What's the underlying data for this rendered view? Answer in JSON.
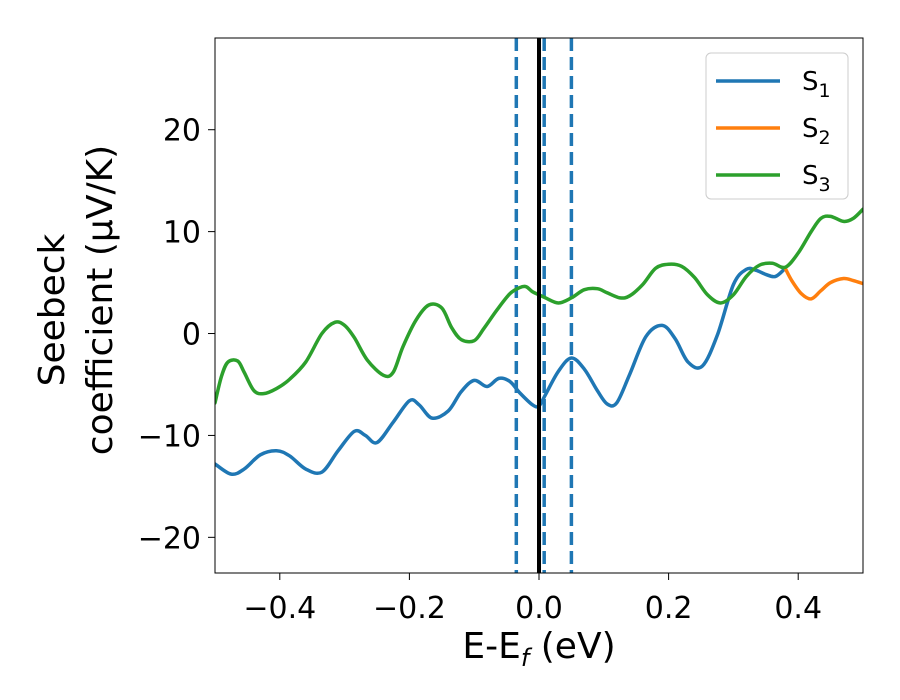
{
  "chart_data": {
    "type": "line",
    "xlabel": "E-E",
    "xlabel_sub": "f",
    "xlabel_unit": " (eV)",
    "ylabel_line1": "Seebeck",
    "ylabel_line2": "coefficient  (μV/K)",
    "xlim": [
      -0.5,
      0.5
    ],
    "ylim": [
      -23.5,
      29
    ],
    "xticks": [
      -0.4,
      -0.2,
      0.0,
      0.2,
      0.4
    ],
    "xtick_labels": [
      "−0.4",
      "−0.2",
      "0.0",
      "0.2",
      "0.4"
    ],
    "yticks": [
      -20,
      -10,
      0,
      10,
      20
    ],
    "ytick_labels": [
      "−20",
      "−10",
      "0",
      "10",
      "20"
    ],
    "grid": false,
    "legend_position": "top-right",
    "vlines": [
      {
        "x": 0.0,
        "style": "solid",
        "color": "#000000"
      },
      {
        "x": -0.035,
        "style": "dashed",
        "color": "#1f77b4"
      },
      {
        "x": 0.008,
        "style": "dashed",
        "color": "#1f77b4"
      },
      {
        "x": 0.05,
        "style": "dashed",
        "color": "#1f77b4"
      }
    ],
    "series": [
      {
        "name": "S",
        "sub": "1",
        "color": "#1f77b4",
        "x": [
          -0.5,
          -0.475,
          -0.455,
          -0.43,
          -0.405,
          -0.385,
          -0.36,
          -0.335,
          -0.31,
          -0.285,
          -0.268,
          -0.25,
          -0.225,
          -0.2,
          -0.185,
          -0.165,
          -0.14,
          -0.12,
          -0.1,
          -0.08,
          -0.062,
          -0.045,
          -0.03,
          -0.01,
          0.0,
          0.01,
          0.03,
          0.05,
          0.07,
          0.09,
          0.105,
          0.12,
          0.14,
          0.165,
          0.19,
          0.21,
          0.23,
          0.252,
          0.275,
          0.3,
          0.32,
          0.335,
          0.35,
          0.365,
          0.38
        ],
        "y": [
          -12.8,
          -13.8,
          -13.3,
          -11.9,
          -11.5,
          -12.0,
          -13.3,
          -13.6,
          -11.5,
          -9.6,
          -10.0,
          -10.7,
          -8.7,
          -6.6,
          -7.0,
          -8.3,
          -7.6,
          -5.7,
          -4.6,
          -5.2,
          -4.4,
          -4.7,
          -5.8,
          -7.0,
          -7.1,
          -6.0,
          -3.7,
          -2.4,
          -3.5,
          -5.6,
          -6.9,
          -6.8,
          -4.0,
          -0.3,
          0.8,
          -0.5,
          -2.8,
          -3.2,
          -0.2,
          4.8,
          6.3,
          6.2,
          5.8,
          5.6,
          6.4
        ]
      },
      {
        "name": "S",
        "sub": "2",
        "color": "#ff7f0e",
        "x": [
          0.38,
          0.39,
          0.405,
          0.42,
          0.435,
          0.45,
          0.47,
          0.485,
          0.5
        ],
        "y": [
          6.4,
          5.2,
          3.9,
          3.4,
          4.2,
          5.0,
          5.4,
          5.2,
          4.9
        ]
      },
      {
        "name": "S",
        "sub": "3",
        "color": "#2ca02c",
        "x": [
          -0.5,
          -0.49,
          -0.48,
          -0.465,
          -0.455,
          -0.44,
          -0.425,
          -0.405,
          -0.385,
          -0.36,
          -0.335,
          -0.315,
          -0.3,
          -0.285,
          -0.265,
          -0.24,
          -0.225,
          -0.21,
          -0.19,
          -0.17,
          -0.15,
          -0.135,
          -0.12,
          -0.1,
          -0.085,
          -0.065,
          -0.045,
          -0.03,
          -0.02,
          -0.01,
          0.0,
          0.01,
          0.03,
          0.05,
          0.07,
          0.09,
          0.105,
          0.125,
          0.14,
          0.16,
          0.18,
          0.2,
          0.22,
          0.24,
          0.26,
          0.28,
          0.3,
          0.32,
          0.34,
          0.36,
          0.38,
          0.4,
          0.42,
          0.435,
          0.45,
          0.47,
          0.485,
          0.5
        ],
        "y": [
          -6.8,
          -4.2,
          -2.8,
          -2.7,
          -3.8,
          -5.6,
          -5.9,
          -5.4,
          -4.5,
          -2.8,
          0.0,
          1.1,
          0.8,
          -0.4,
          -2.6,
          -4.1,
          -3.8,
          -1.3,
          1.3,
          2.8,
          2.5,
          0.6,
          -0.6,
          -0.7,
          0.5,
          2.3,
          3.9,
          4.5,
          4.6,
          4.1,
          3.8,
          3.5,
          3.0,
          3.5,
          4.3,
          4.4,
          4.0,
          3.5,
          3.7,
          4.8,
          6.4,
          6.8,
          6.6,
          5.5,
          3.8,
          3.0,
          3.8,
          5.6,
          6.7,
          6.9,
          6.5,
          7.9,
          10.0,
          11.3,
          11.5,
          11.0,
          11.3,
          12.2
        ]
      }
    ]
  }
}
